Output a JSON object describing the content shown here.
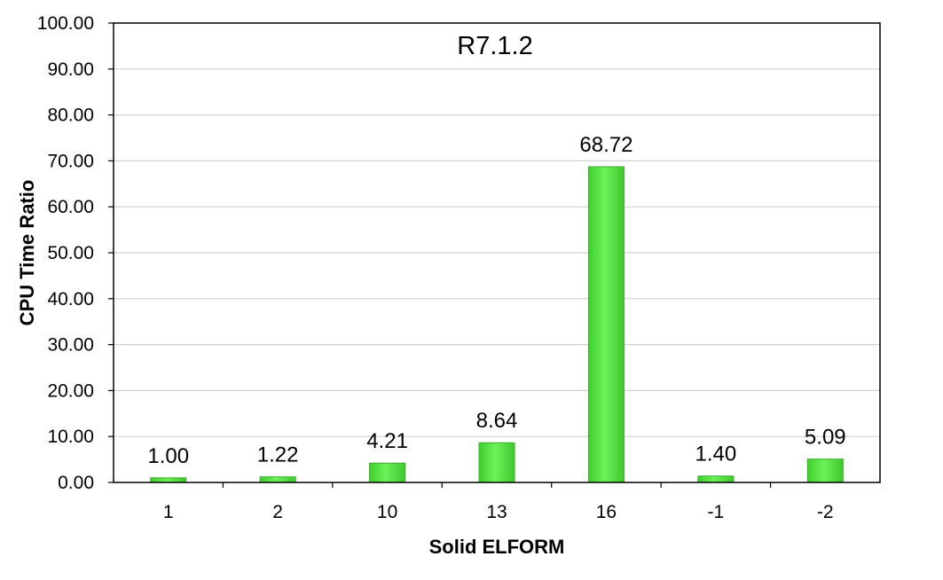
{
  "chart_data": {
    "type": "bar",
    "title": "R7.1.2",
    "xlabel": "Solid ELFORM",
    "ylabel": "CPU Time Ratio",
    "categories": [
      "1",
      "2",
      "10",
      "13",
      "16",
      "-1",
      "-2"
    ],
    "values": [
      1.0,
      1.22,
      4.21,
      8.64,
      68.72,
      1.4,
      5.09
    ],
    "value_labels": [
      "1.00",
      "1.22",
      "4.21",
      "8.64",
      "68.72",
      "1.40",
      "5.09"
    ],
    "ylim": [
      0,
      100
    ],
    "yticks": [
      "0.00",
      "10.00",
      "20.00",
      "30.00",
      "40.00",
      "50.00",
      "60.00",
      "70.00",
      "80.00",
      "90.00",
      "100.00"
    ],
    "grid": true,
    "legend": false,
    "bar_color": "#5EE84A",
    "bar_edge_color": "#3DAA2E"
  }
}
